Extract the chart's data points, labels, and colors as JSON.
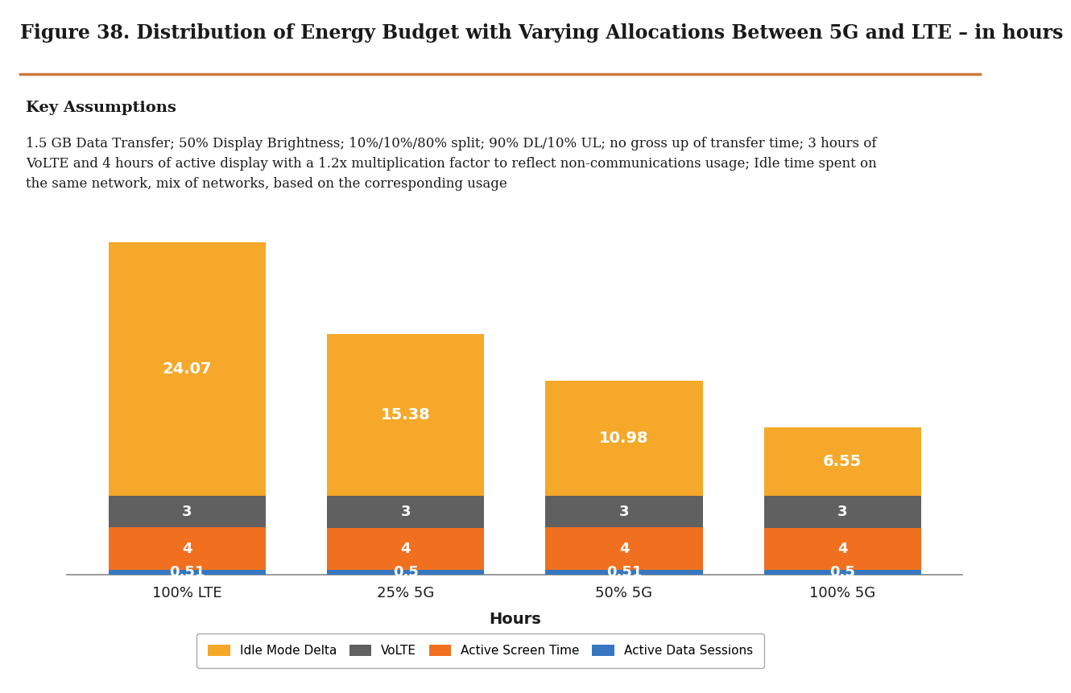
{
  "title": "Figure 38. Distribution of Energy Budget with Varying Allocations Between 5G and LTE – in hours",
  "assumption_title": "Key Assumptions",
  "assumption_text": "1.5 GB Data Transfer; 50% Display Brightness; 10%/10%/80% split; 90% DL/10% UL; no gross up of transfer time; 3 hours of\nVoLTE and 4 hours of active display with a 1.2x multiplication factor to reflect non-communications usage; Idle time spent on\nthe same network, mix of networks, based on the corresponding usage",
  "xlabel": "Hours",
  "categories": [
    "100% LTE",
    "25% 5G",
    "50% 5G",
    "100% 5G"
  ],
  "segments": {
    "Active Data Sessions": [
      0.51,
      0.5,
      0.51,
      0.5
    ],
    "Active Screen Time": [
      4,
      4,
      4,
      4
    ],
    "VoLTE": [
      3,
      3,
      3,
      3
    ],
    "Idle Mode Delta": [
      24.07,
      15.38,
      10.98,
      6.55
    ]
  },
  "segment_colors": {
    "Active Data Sessions": "#3777C0",
    "Active Screen Time": "#F07020",
    "VoLTE": "#606060",
    "Idle Mode Delta": "#F5A82A"
  },
  "segment_labels": {
    "Active Data Sessions": [
      "0.51",
      "0.5",
      "0.51",
      "0.5"
    ],
    "Active Screen Time": [
      "4",
      "4",
      "4",
      "4"
    ],
    "VoLTE": [
      "3",
      "3",
      "3",
      "3"
    ],
    "Idle Mode Delta": [
      "24.07",
      "15.38",
      "10.98",
      "6.55"
    ]
  },
  "background_color": "#FFFFFF",
  "assumption_bg_color": "#DCDCDC",
  "bar_width": 0.72,
  "ylim": [
    0,
    32
  ],
  "legend_labels": [
    "Idle Mode Delta",
    "VoLTE",
    "Active Screen Time",
    "Active Data Sessions"
  ],
  "legend_colors": [
    "#F5A82A",
    "#606060",
    "#F07020",
    "#3777C0"
  ],
  "title_fontsize": 17,
  "assumption_title_fontsize": 14,
  "assumption_text_fontsize": 12,
  "xlabel_fontsize": 14,
  "xtick_fontsize": 13,
  "bar_label_fontsize_large": 14,
  "bar_label_fontsize_small": 13
}
